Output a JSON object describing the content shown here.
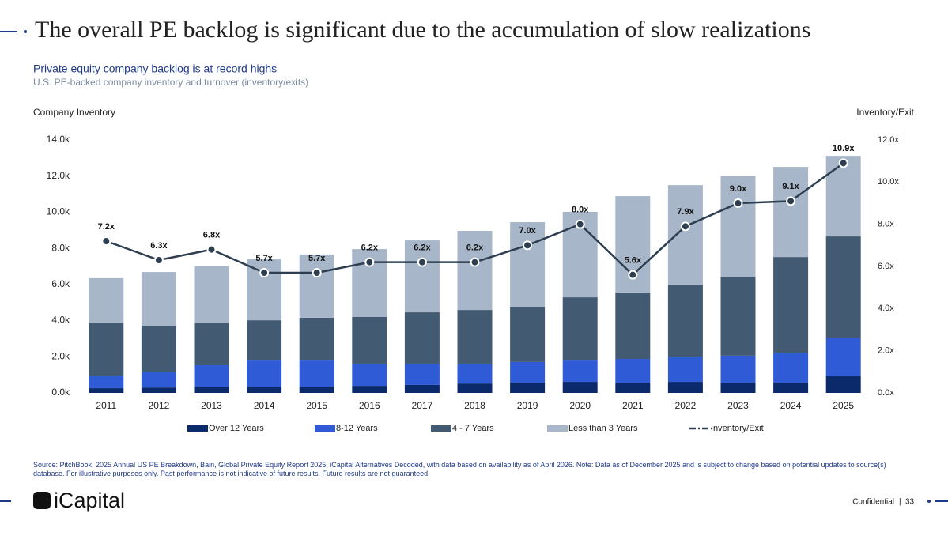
{
  "slide": {
    "title": "The overall PE backlog is significant due to the accumulation of slow realizations",
    "subtitle": "Private equity company backlog is at record highs",
    "description": "U.S. PE-backed company inventory and turnover (inventory/exits)",
    "source": "Source: PitchBook, 2025 Annual US PE Breakdown, Bain, Global Private Equity Report 2025, iCapital Alternatives Decoded, with data based on availability as of April 2026. Note: Data as of December 2025 and is subject to change based on potential updates to source(s) database. For illustrative purposes only. Past performance is not indicative of future results. Future results are not guaranteed.",
    "logo": "iCapital",
    "confidential": "Confidential",
    "page": "33"
  },
  "chart_data": {
    "type": "stacked-bar-line",
    "ylabel": "Company Inventory",
    "y2label": "Inventory/Exit",
    "categories": [
      "2011",
      "2012",
      "2013",
      "2014",
      "2015",
      "2016",
      "2017",
      "2018",
      "2019",
      "2020",
      "2021",
      "2022",
      "2023",
      "2024",
      "2025"
    ],
    "series": [
      {
        "name": "Over 12 Years",
        "color": "#0b2a6b",
        "values": [
          260,
          300,
          350,
          350,
          350,
          390,
          440,
          520,
          570,
          610,
          570,
          610,
          570,
          570,
          920
        ]
      },
      {
        "name": "8-12 Years",
        "color": "#2f5bd6",
        "values": [
          700,
          880,
          1180,
          1440,
          1440,
          1230,
          1180,
          1100,
          1140,
          1180,
          1310,
          1400,
          1490,
          1660,
          2100
        ]
      },
      {
        "name": "4 - 7 Years",
        "color": "#435a73",
        "values": [
          2940,
          2540,
          2360,
          2230,
          2370,
          2580,
          2840,
          2970,
          3060,
          3500,
          3680,
          3990,
          4370,
          5290,
          5640
        ]
      },
      {
        "name": "Less than 3 Years",
        "color": "#a8b6c9",
        "values": [
          2450,
          2970,
          3150,
          3370,
          3500,
          3760,
          3980,
          4380,
          4680,
          4730,
          5330,
          5500,
          5560,
          4990,
          4460
        ]
      },
      {
        "name": "Inventory/Exit",
        "color": "#2d3e50",
        "axis": "y2",
        "values": [
          7.2,
          6.3,
          6.8,
          5.7,
          5.7,
          6.2,
          6.2,
          6.2,
          7.0,
          8.0,
          5.6,
          7.9,
          9.0,
          9.1,
          10.9
        ],
        "value_labels": [
          "7.2x",
          "6.3x",
          "6.8x",
          "5.7x",
          "5.7x",
          "6.2x",
          "6.2x",
          "6.2x",
          "7.0x",
          "8.0x",
          "5.6x",
          "7.9x",
          "9.0x",
          "9.1x",
          "10.9x"
        ]
      }
    ],
    "ylim": [
      0,
      14000
    ],
    "yticks": [
      {
        "value": 0,
        "label": "0.0k"
      },
      {
        "value": 2000,
        "label": "2.0k"
      },
      {
        "value": 4000,
        "label": "4.0k"
      },
      {
        "value": 6000,
        "label": "6.0k"
      },
      {
        "value": 8000,
        "label": "8.0k"
      },
      {
        "value": 10000,
        "label": "10.0k"
      },
      {
        "value": 12000,
        "label": "12.0k"
      },
      {
        "value": 14000,
        "label": "14.0k"
      }
    ],
    "y2lim": [
      0,
      12
    ],
    "y2ticks": [
      {
        "value": 0,
        "label": "0.0x"
      },
      {
        "value": 2,
        "label": "2.0x"
      },
      {
        "value": 4,
        "label": "4.0x"
      },
      {
        "value": 6,
        "label": "6.0x"
      },
      {
        "value": 8,
        "label": "8.0x"
      },
      {
        "value": 10,
        "label": "10.0x"
      },
      {
        "value": 12,
        "label": "12.0x"
      }
    ],
    "grid": false,
    "legend": "bottom"
  }
}
